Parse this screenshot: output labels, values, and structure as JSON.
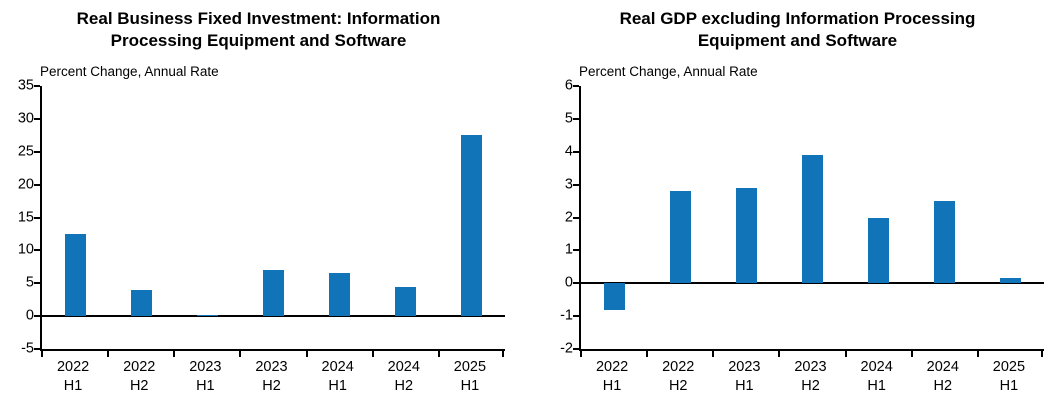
{
  "chart_data": [
    {
      "type": "bar",
      "title": "Real Business Fixed Investment: Information Processing Equipment and Software",
      "title_lines": [
        "Real Business Fixed Investment: Information",
        "Processing Equipment and Software"
      ],
      "ylabel": "Percent Change, Annual Rate",
      "xlabel": "",
      "categories": [
        [
          "2022",
          "H1"
        ],
        [
          "2022",
          "H2"
        ],
        [
          "2023",
          "H1"
        ],
        [
          "2023",
          "H2"
        ],
        [
          "2024",
          "H1"
        ],
        [
          "2024",
          "H2"
        ],
        [
          "2025",
          "H1"
        ]
      ],
      "values": [
        12.5,
        4.0,
        0.1,
        7.0,
        6.5,
        4.5,
        27.5
      ],
      "ylim": [
        -5,
        35
      ],
      "ytick_step": 5,
      "bar_color": "#1173b8",
      "grid": false,
      "legend": "none"
    },
    {
      "type": "bar",
      "title": "Real GDP excluding Information Processing Equipment and Software",
      "title_lines": [
        "Real GDP excluding Information Processing",
        "Equipment and Software"
      ],
      "ylabel": "Percent Change, Annual Rate",
      "xlabel": "",
      "categories": [
        [
          "2022",
          "H1"
        ],
        [
          "2022",
          "H2"
        ],
        [
          "2023",
          "H1"
        ],
        [
          "2023",
          "H2"
        ],
        [
          "2024",
          "H1"
        ],
        [
          "2024",
          "H2"
        ],
        [
          "2025",
          "H1"
        ]
      ],
      "values": [
        -0.8,
        2.8,
        2.9,
        3.9,
        2.0,
        2.5,
        0.15
      ],
      "ylim": [
        -2,
        6
      ],
      "ytick_step": 1,
      "bar_color": "#1173b8",
      "grid": false,
      "legend": "none"
    }
  ]
}
